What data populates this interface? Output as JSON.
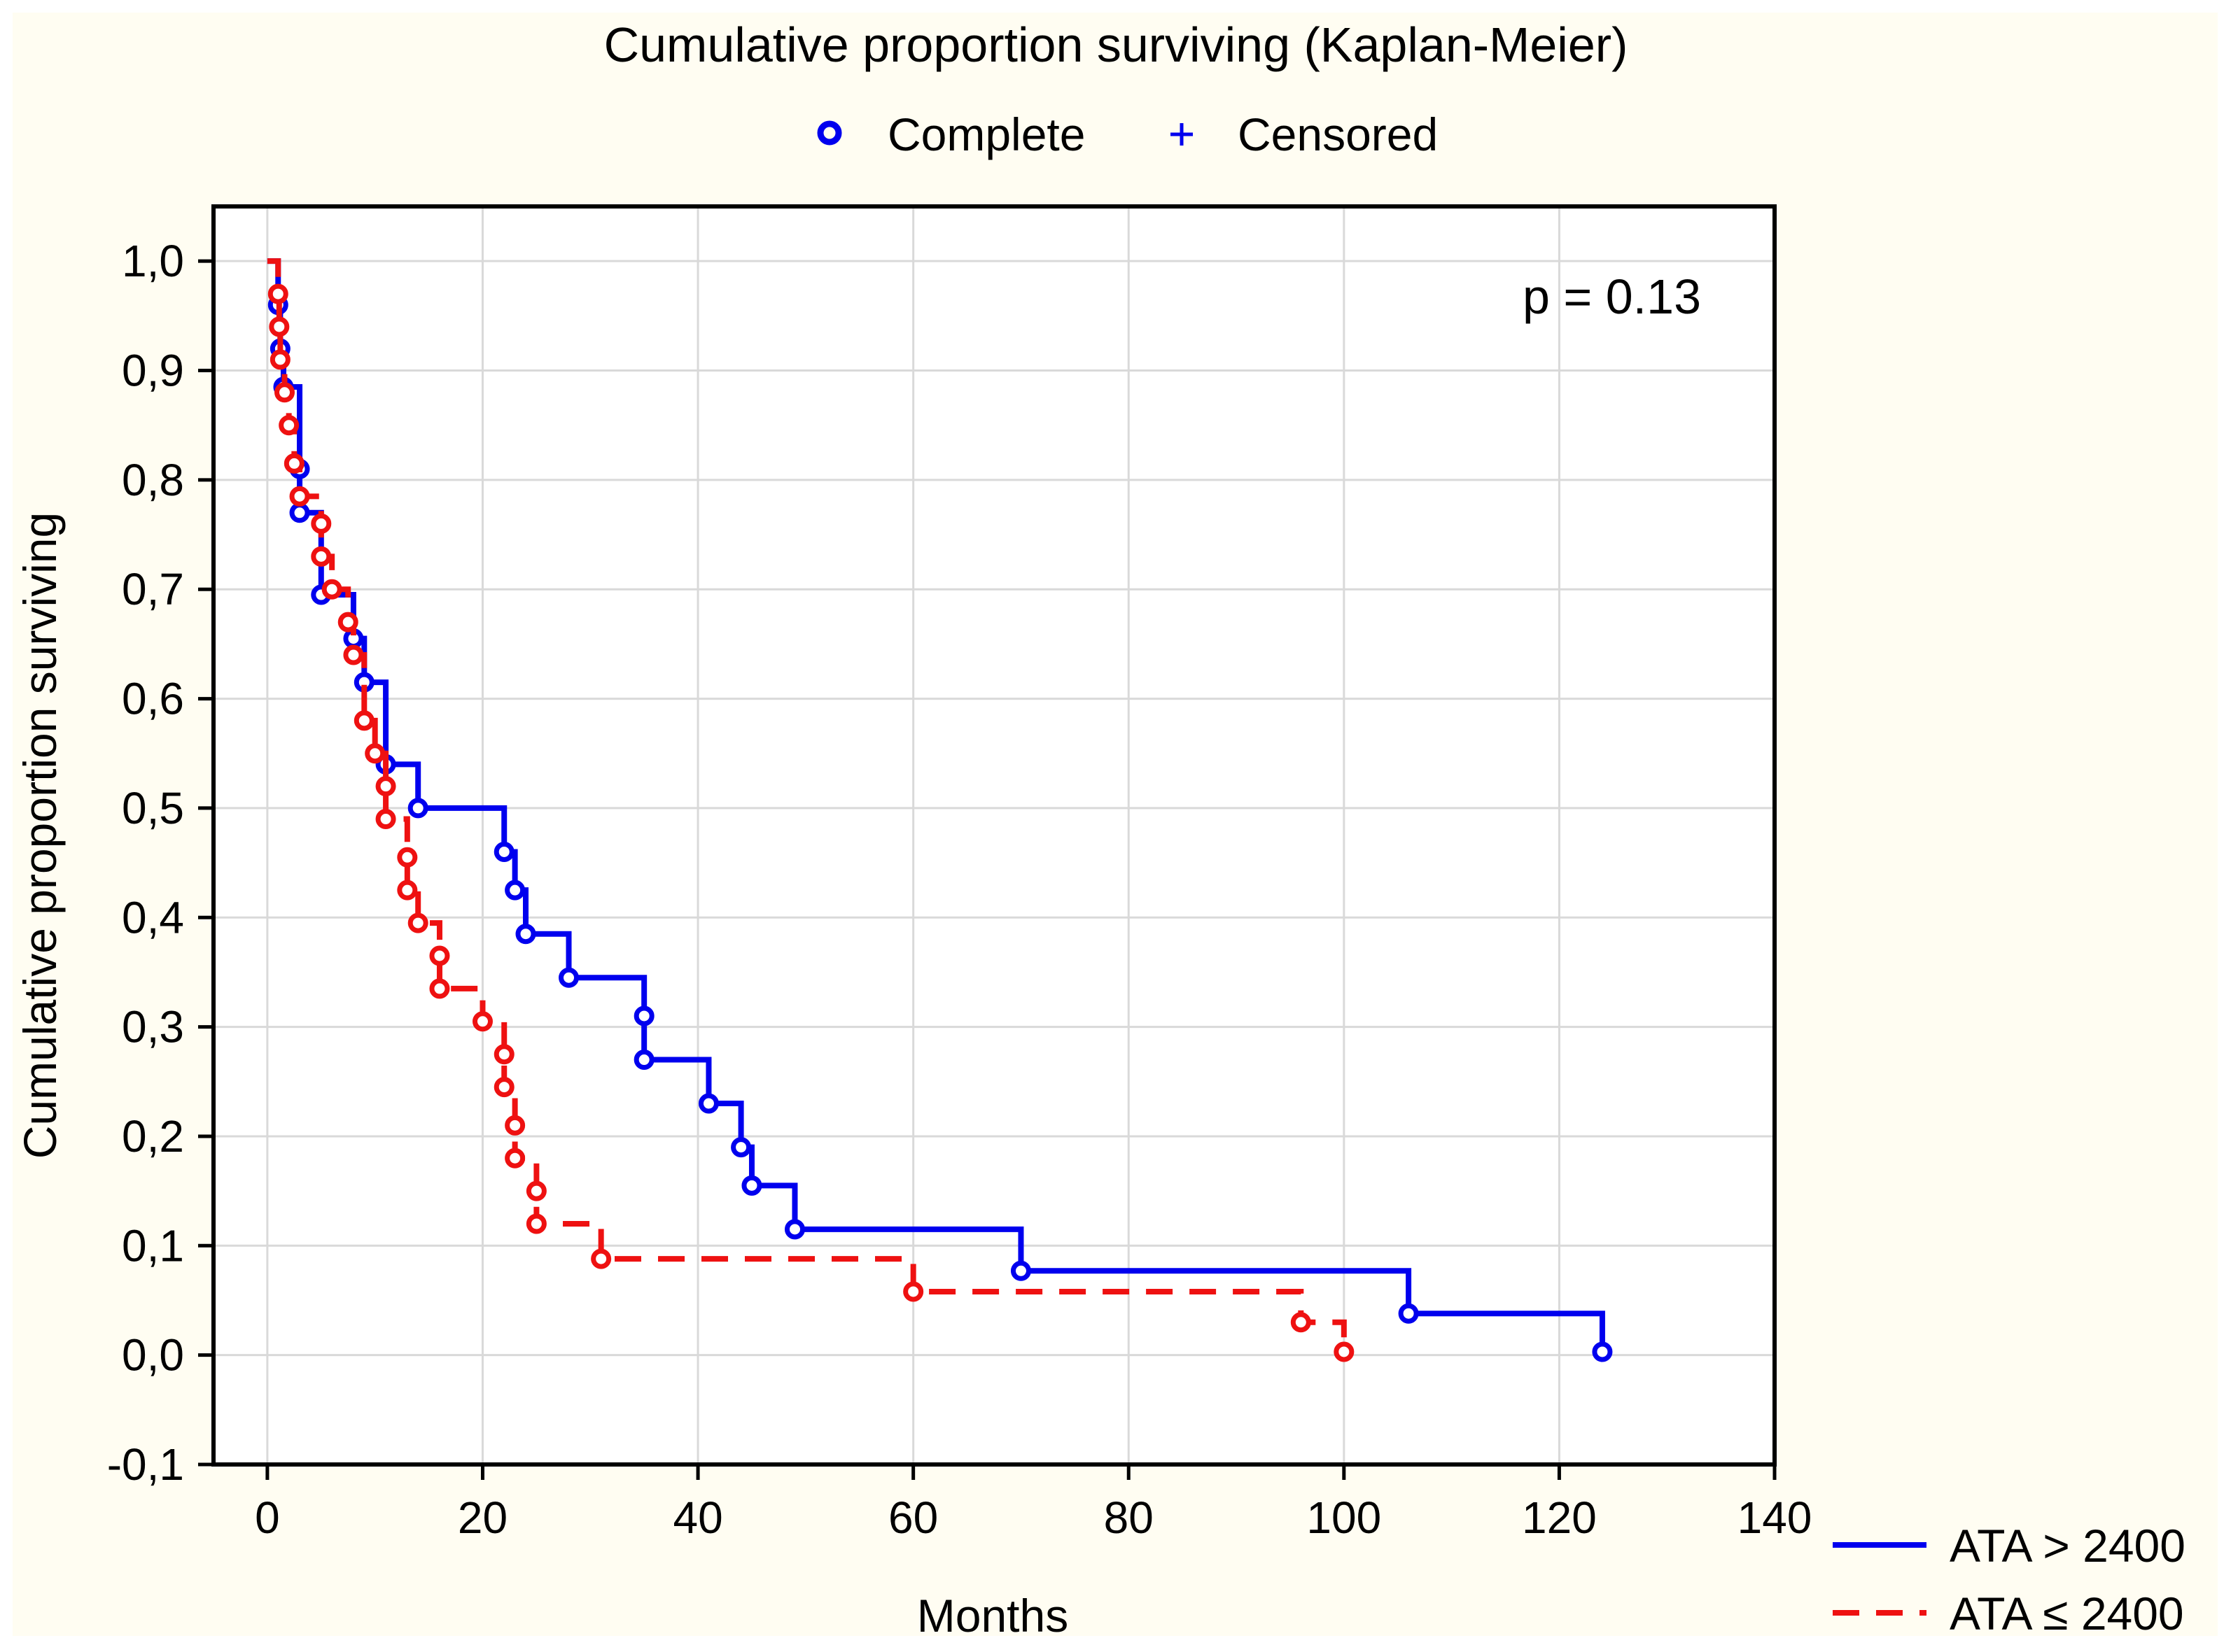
{
  "chart_data": {
    "type": "line",
    "title": "Cumulative proportion surviving (Kaplan-Meier)",
    "marker_legend": [
      {
        "label": "Complete",
        "marker": "circle"
      },
      {
        "label": "Censored",
        "marker": "plus"
      }
    ],
    "xlabel": "Months",
    "ylabel": "Cumulative proportion surviving",
    "xlim": [
      -5,
      140
    ],
    "ylim": [
      -0.1,
      1.05
    ],
    "xticks": [
      0,
      20,
      40,
      60,
      80,
      100,
      120,
      140
    ],
    "xtick_labels": [
      "0",
      "20",
      "40",
      "60",
      "80",
      "100",
      "120",
      "140"
    ],
    "yticks": [
      -0.1,
      0.0,
      0.1,
      0.2,
      0.3,
      0.4,
      0.5,
      0.6,
      0.7,
      0.8,
      0.9,
      1.0
    ],
    "ytick_labels": [
      "-0,1",
      "0,0",
      "0,1",
      "0,2",
      "0,3",
      "0,4",
      "0,5",
      "0,6",
      "0,7",
      "0,8",
      "0,9",
      "1,0"
    ],
    "grid": true,
    "annotation": "p = 0.13",
    "legend_position": "bottom-right outside",
    "series": [
      {
        "name": "ATA > 2400",
        "color": "#0000ee",
        "dash": "solid",
        "steps": [
          [
            0,
            1.0
          ],
          [
            1,
            0.96
          ],
          [
            1.2,
            0.92
          ],
          [
            1.5,
            0.885
          ],
          [
            3,
            0.81
          ],
          [
            3,
            0.77
          ],
          [
            5,
            0.695
          ],
          [
            8,
            0.655
          ],
          [
            9,
            0.615
          ],
          [
            11,
            0.54
          ],
          [
            14,
            0.5
          ],
          [
            22,
            0.46
          ],
          [
            23,
            0.425
          ],
          [
            24,
            0.385
          ],
          [
            28,
            0.345
          ],
          [
            35,
            0.31
          ],
          [
            35,
            0.27
          ],
          [
            41,
            0.23
          ],
          [
            44,
            0.19
          ],
          [
            45,
            0.155
          ],
          [
            49,
            0.115
          ],
          [
            70,
            0.077
          ],
          [
            106,
            0.038
          ],
          [
            124,
            0.003
          ]
        ],
        "events": [
          [
            1,
            0.96
          ],
          [
            1.2,
            0.92
          ],
          [
            1.5,
            0.885
          ],
          [
            3,
            0.81
          ],
          [
            3,
            0.77
          ],
          [
            5,
            0.695
          ],
          [
            8,
            0.655
          ],
          [
            9,
            0.615
          ],
          [
            11,
            0.54
          ],
          [
            14,
            0.5
          ],
          [
            22,
            0.46
          ],
          [
            23,
            0.425
          ],
          [
            24,
            0.385
          ],
          [
            28,
            0.345
          ],
          [
            35,
            0.31
          ],
          [
            35,
            0.27
          ],
          [
            41,
            0.23
          ],
          [
            44,
            0.19
          ],
          [
            45,
            0.155
          ],
          [
            49,
            0.115
          ],
          [
            70,
            0.077
          ],
          [
            106,
            0.038
          ],
          [
            124,
            0.003
          ]
        ]
      },
      {
        "name": "ATA ≤ 2400",
        "color": "#ee1111",
        "dash": "dashed",
        "steps": [
          [
            0,
            1.0
          ],
          [
            1,
            0.97
          ],
          [
            1.1,
            0.94
          ],
          [
            1.2,
            0.91
          ],
          [
            1.6,
            0.88
          ],
          [
            2,
            0.85
          ],
          [
            2.5,
            0.815
          ],
          [
            3,
            0.785
          ],
          [
            5,
            0.76
          ],
          [
            5,
            0.73
          ],
          [
            6,
            0.7
          ],
          [
            7.5,
            0.67
          ],
          [
            8,
            0.64
          ],
          [
            9,
            0.58
          ],
          [
            10,
            0.55
          ],
          [
            11,
            0.52
          ],
          [
            11,
            0.49
          ],
          [
            13,
            0.455
          ],
          [
            13,
            0.425
          ],
          [
            14,
            0.395
          ],
          [
            16,
            0.365
          ],
          [
            16,
            0.335
          ],
          [
            20,
            0.305
          ],
          [
            22,
            0.275
          ],
          [
            22,
            0.245
          ],
          [
            23,
            0.21
          ],
          [
            23,
            0.18
          ],
          [
            25,
            0.15
          ],
          [
            25,
            0.12
          ],
          [
            31,
            0.088
          ],
          [
            60,
            0.058
          ],
          [
            96,
            0.03
          ],
          [
            100,
            0.003
          ]
        ],
        "events": [
          [
            1,
            0.97
          ],
          [
            1.1,
            0.94
          ],
          [
            1.2,
            0.91
          ],
          [
            1.6,
            0.88
          ],
          [
            2,
            0.85
          ],
          [
            2.5,
            0.815
          ],
          [
            3,
            0.785
          ],
          [
            5,
            0.76
          ],
          [
            5,
            0.73
          ],
          [
            6,
            0.7
          ],
          [
            7.5,
            0.67
          ],
          [
            8,
            0.64
          ],
          [
            9,
            0.58
          ],
          [
            10,
            0.55
          ],
          [
            11,
            0.52
          ],
          [
            11,
            0.49
          ],
          [
            13,
            0.455
          ],
          [
            13,
            0.425
          ],
          [
            14,
            0.395
          ],
          [
            16,
            0.365
          ],
          [
            16,
            0.335
          ],
          [
            20,
            0.305
          ],
          [
            22,
            0.275
          ],
          [
            22,
            0.245
          ],
          [
            23,
            0.21
          ],
          [
            23,
            0.18
          ],
          [
            25,
            0.15
          ],
          [
            25,
            0.12
          ],
          [
            31,
            0.088
          ],
          [
            60,
            0.058
          ],
          [
            96,
            0.03
          ],
          [
            100,
            0.003
          ]
        ]
      }
    ]
  }
}
